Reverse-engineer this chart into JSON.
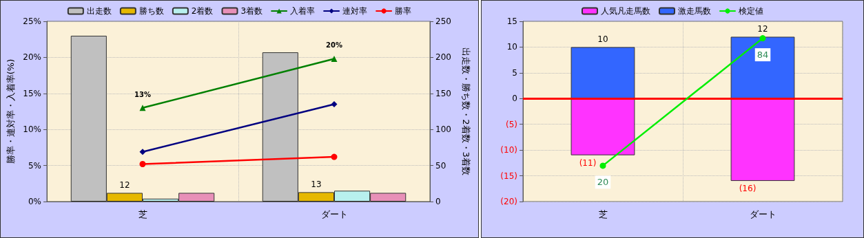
{
  "chart_data": [
    {
      "type": "bar",
      "categories": [
        "芝",
        "ダート"
      ],
      "ylabel": "勝率・連対率・入着率(%)",
      "y2label": "出走数・勝ち数・2着数・3着数",
      "ylim": [
        0,
        25
      ],
      "yticks": [
        {
          "value": 0,
          "label": "0%"
        },
        {
          "value": 5,
          "label": "5%"
        },
        {
          "value": 10,
          "label": "10%"
        },
        {
          "value": 15,
          "label": "15%"
        },
        {
          "value": 20,
          "label": "20%"
        },
        {
          "value": 25,
          "label": "25%"
        }
      ],
      "y2lim": [
        0,
        250
      ],
      "y2ticks": [
        0,
        50,
        100,
        150,
        200,
        250
      ],
      "grid": true,
      "legend": "top",
      "series": [
        {
          "name": "出走数",
          "axis": "y2",
          "color": "#c0c0c0",
          "values": [
            230,
            207
          ]
        },
        {
          "name": "勝ち数",
          "axis": "y2",
          "color": "#e6b800",
          "values": [
            12,
            13
          ],
          "value_labels": [
            "12",
            "13"
          ]
        },
        {
          "name": "2着数",
          "axis": "y2",
          "color": "#b8f0ee",
          "values": [
            4,
            15
          ]
        },
        {
          "name": "3着数",
          "axis": "y2",
          "color": "#e890b8",
          "values": [
            12,
            12
          ]
        },
        {
          "name": "入着率",
          "type": "line",
          "marker": "triangle",
          "color": "#008000",
          "values": [
            13,
            19.8
          ],
          "value_labels": [
            "13%",
            "20%"
          ]
        },
        {
          "name": "連対率",
          "type": "line",
          "marker": "diamond",
          "color": "#000080",
          "values": [
            6.9,
            13.5
          ]
        },
        {
          "name": "勝率",
          "type": "line",
          "marker": "circle",
          "color": "#ff0000",
          "values": [
            5.2,
            6.2
          ]
        }
      ]
    },
    {
      "type": "bar",
      "stacked": true,
      "categories": [
        "芝",
        "ダート"
      ],
      "ylim": [
        -20,
        15
      ],
      "y2lim": [
        2,
        92.5
      ],
      "yticks": [
        {
          "value": -20,
          "label": "(20)"
        },
        {
          "value": -15,
          "label": "(15)"
        },
        {
          "value": -10,
          "label": "(10)"
        },
        {
          "value": -5,
          "label": "(5)"
        },
        0,
        5,
        10,
        15
      ],
      "grid": true,
      "legend": "top",
      "ref_lines": [
        {
          "axis": "y",
          "value": 0,
          "color": "#ff0000"
        }
      ],
      "series": [
        {
          "name": "人気凡走馬数",
          "color": "#ff33ff",
          "values": [
            -11,
            -16
          ],
          "value_labels": [
            "(11)",
            "(16)"
          ]
        },
        {
          "name": "激走馬数",
          "color": "#3366ff",
          "values": [
            10,
            12
          ],
          "value_labels": [
            "10",
            "12"
          ]
        },
        {
          "name": "検定値",
          "type": "line",
          "axis": "y2",
          "marker": "circle",
          "color": "#00ee00",
          "values": [
            20,
            84
          ],
          "data_labels": true
        }
      ]
    }
  ]
}
